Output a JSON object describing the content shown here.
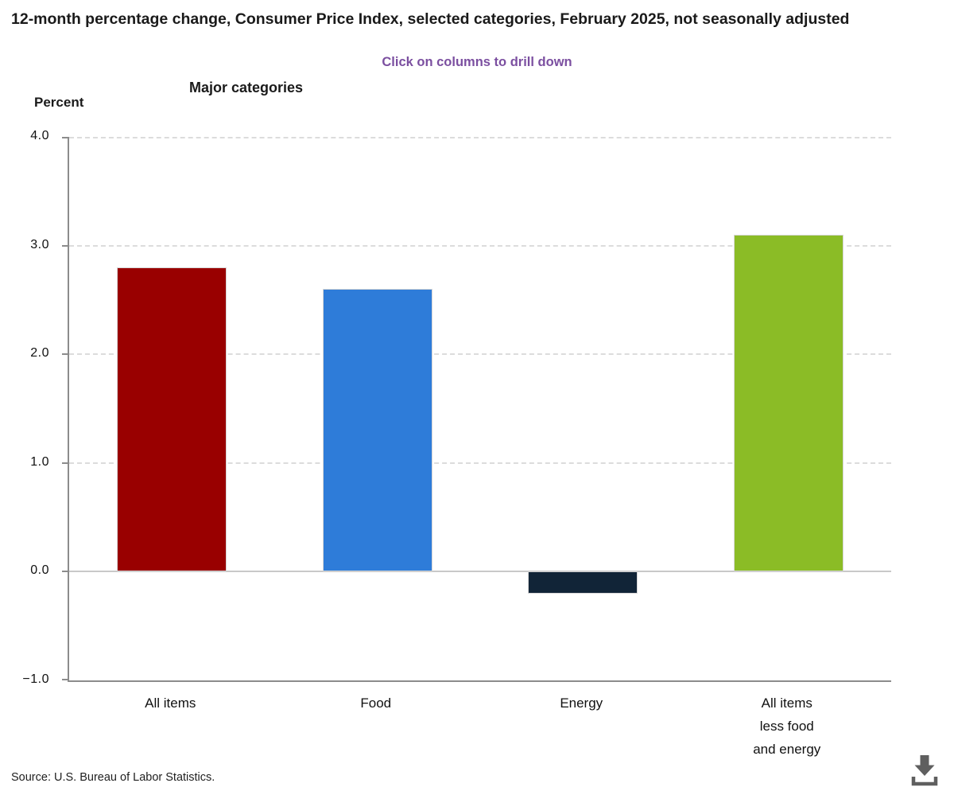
{
  "page": {
    "title": "12-month percentage change, Consumer Price Index, selected categories, February 2025, not seasonally adjusted",
    "subtitle": "Click on columns to drill down",
    "source": "Source: U.S. Bureau of Labor Statistics."
  },
  "chart_data": {
    "type": "bar",
    "title": "Major categories",
    "xlabel": "",
    "ylabel": "Percent",
    "categories": [
      "All items",
      "Food",
      "Energy",
      "All items\nless food\nand energy"
    ],
    "values": [
      2.8,
      2.6,
      -0.2,
      3.1
    ],
    "colors": [
      "#990000",
      "#2E7CD9",
      "#112437",
      "#8BBC26"
    ],
    "ylim": [
      -1.0,
      4.0
    ],
    "yticks": [
      4.0,
      3.0,
      2.0,
      1.0,
      0.0,
      -1.0
    ],
    "ytick_labels": [
      "4.0",
      "3.0",
      "2.0",
      "1.0",
      "0.0",
      "−1.0"
    ],
    "grid": "dashed-horizontal",
    "legend": "none"
  },
  "icons": {
    "download": "download-icon"
  },
  "theme": {
    "subtitle_color": "#7B4FA0",
    "axis_color": "#8C8C8C",
    "grid_color": "#DCDCDC",
    "zero_line_color": "#C9C9C9",
    "text_color": "#1A1A1A",
    "icon_color": "#5F5F5F"
  }
}
